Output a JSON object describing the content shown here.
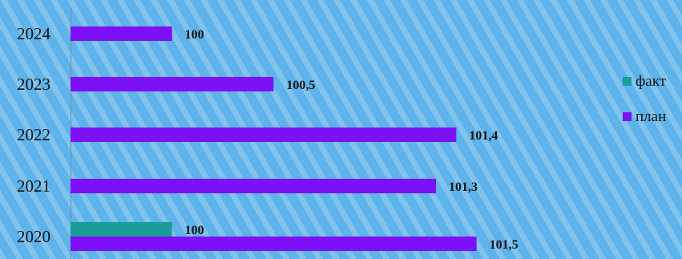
{
  "chart_data": {
    "type": "bar",
    "orientation": "horizontal",
    "categories": [
      "2020",
      "2021",
      "2022",
      "2023",
      "2024"
    ],
    "series": [
      {
        "name": "факт",
        "color": "#1a9d97",
        "values": [
          100,
          null,
          null,
          null,
          null
        ],
        "labels": [
          "100",
          "",
          "",
          "",
          ""
        ]
      },
      {
        "name": "план",
        "color": "#7d10f6",
        "values": [
          101.5,
          101.3,
          101.4,
          100.5,
          100
        ],
        "labels": [
          "101,5",
          "101,3",
          "101,4",
          "100,5",
          "100"
        ]
      }
    ],
    "title": "",
    "xlabel": "",
    "ylabel": "",
    "xlim": [
      99.5,
      101.6
    ],
    "legend": "right"
  }
}
